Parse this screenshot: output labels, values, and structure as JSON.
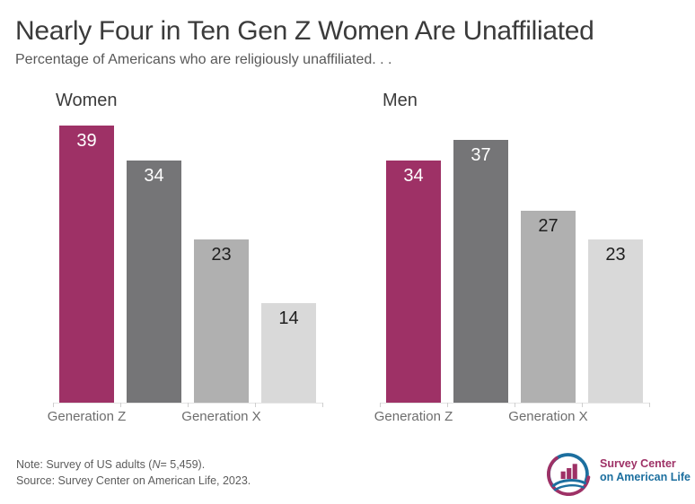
{
  "header": {
    "title": "Nearly Four in Ten Gen Z Women Are Unaffiliated",
    "subtitle": "Percentage of Americans who are religiously unaffiliated. . ."
  },
  "chart_data": {
    "type": "bar",
    "unit": "percent of US adults",
    "ylim": [
      0,
      43
    ],
    "grid": false,
    "legend": false,
    "value_labels": "inside-top",
    "panels": [
      {
        "title": "Women",
        "values": [
          39,
          34,
          23,
          14
        ]
      },
      {
        "title": "Men",
        "values": [
          34,
          37,
          27,
          23
        ]
      }
    ],
    "x_axis_labels": [
      {
        "text": "Generation Z",
        "bar_index": 0
      },
      {
        "text": "Generation X",
        "bar_index": 2
      }
    ],
    "bar_colors": [
      "#9e3166",
      "#757577",
      "#b0b0b0",
      "#d9d9d9"
    ],
    "value_label_colors": [
      "#ffffff",
      "#ffffff",
      "#1f1f1f",
      "#1f1f1f"
    ]
  },
  "footer": {
    "note_prefix": "Note: Survey of US adults (",
    "note_n": "N",
    "note_suffix": "= 5,459).",
    "source": "Source: Survey Center on American Life, 2023."
  },
  "logo": {
    "line1": "Survey Center",
    "line2": "on American Life",
    "magenta": "#9e3166",
    "blue": "#1c6f9f"
  }
}
